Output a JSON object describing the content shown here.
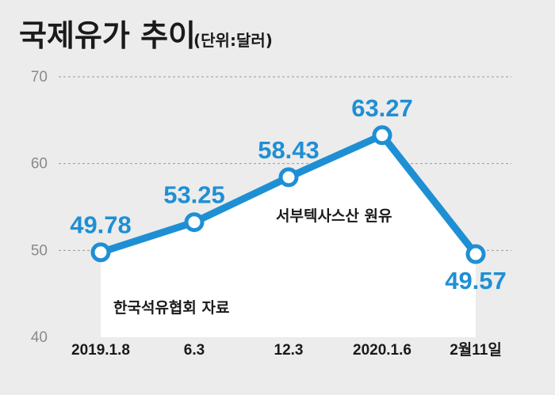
{
  "title": "국제유가 추이",
  "unit": "(단위:달러)",
  "series_label": "서부텍사스산 원유",
  "source": "한국석유협회 자료",
  "colors": {
    "line": "#1f8fd4",
    "label": "#1f8fd4",
    "background": "#ececec",
    "fill": "#ffffff"
  },
  "chart_data": {
    "type": "line",
    "title": "국제유가 추이",
    "ylabel": "(단위:달러)",
    "xlabel": "",
    "categories": [
      "2019.1.8",
      "6.3",
      "12.3",
      "2020.1.6",
      "2월11일"
    ],
    "series": [
      {
        "name": "서부텍사스산 원유",
        "values": [
          49.78,
          53.25,
          58.43,
          63.27,
          49.57
        ]
      }
    ],
    "data_labels": [
      "49.78",
      "53.25",
      "58.43",
      "63.27",
      "49.57"
    ],
    "yticks": [
      40,
      50,
      60,
      70
    ],
    "ylim": [
      40,
      70
    ],
    "grid": true,
    "grid_style": "dashed",
    "legend": "none"
  }
}
